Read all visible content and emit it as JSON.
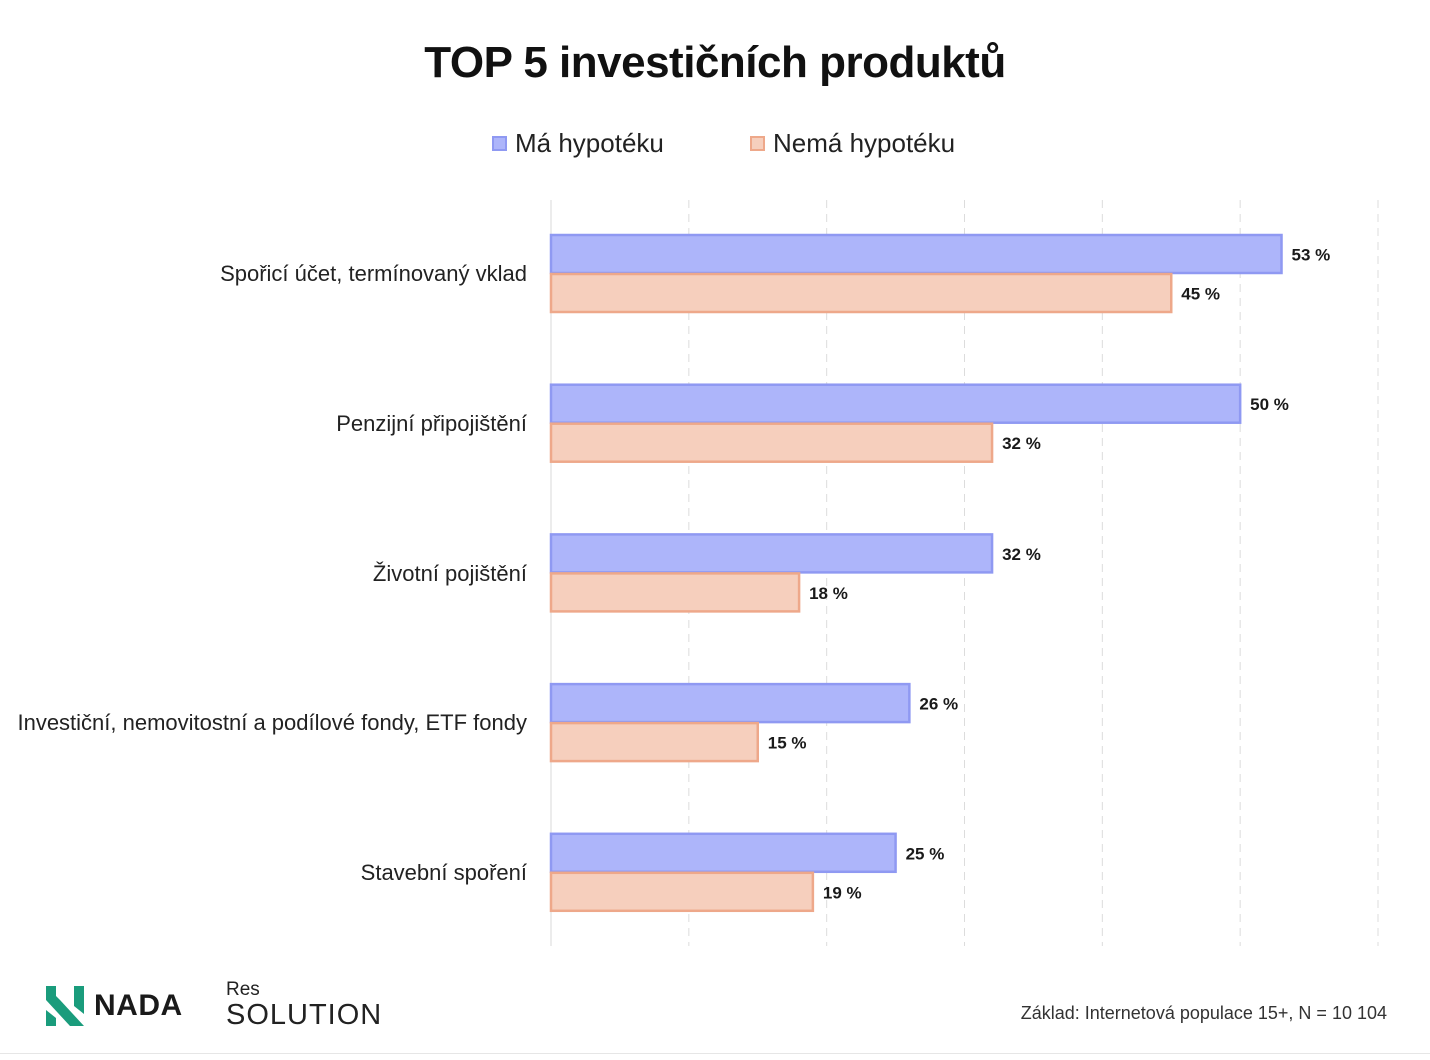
{
  "chart_data": {
    "type": "bar",
    "orientation": "horizontal",
    "title": "TOP 5 investičních produktů",
    "categories": [
      "Spořicí účet, termínovaný vklad",
      "Penzijní připojištění",
      "Životní pojištění",
      "Investiční, nemovitostní a podílové fondy, ETF fondy",
      "Stavební spoření"
    ],
    "series": [
      {
        "name": "Má hypotéku",
        "values": [
          53,
          50,
          32,
          26,
          25
        ],
        "labels": [
          "53 %",
          "50 %",
          "32 %",
          "26 %",
          "25 %"
        ],
        "fill": "#adb5fa",
        "stroke": "#8f99f2"
      },
      {
        "name": "Nemá hypotéku",
        "values": [
          45,
          32,
          18,
          15,
          19
        ],
        "labels": [
          "45 %",
          "32 %",
          "18 %",
          "15 %",
          "19 %"
        ],
        "fill": "#f6cfbd",
        "stroke": "#eea88a"
      }
    ],
    "xlim": [
      0,
      60
    ],
    "grid": true,
    "legend": "top-center"
  },
  "footer": {
    "note": "Základ: Internetová populace 15+, N = 10 104",
    "logo_nada": "NADA",
    "logo_res_small": "Res",
    "logo_res_big": "SOLUTION"
  },
  "colors": {
    "nada_green": "#1a9c7c"
  }
}
